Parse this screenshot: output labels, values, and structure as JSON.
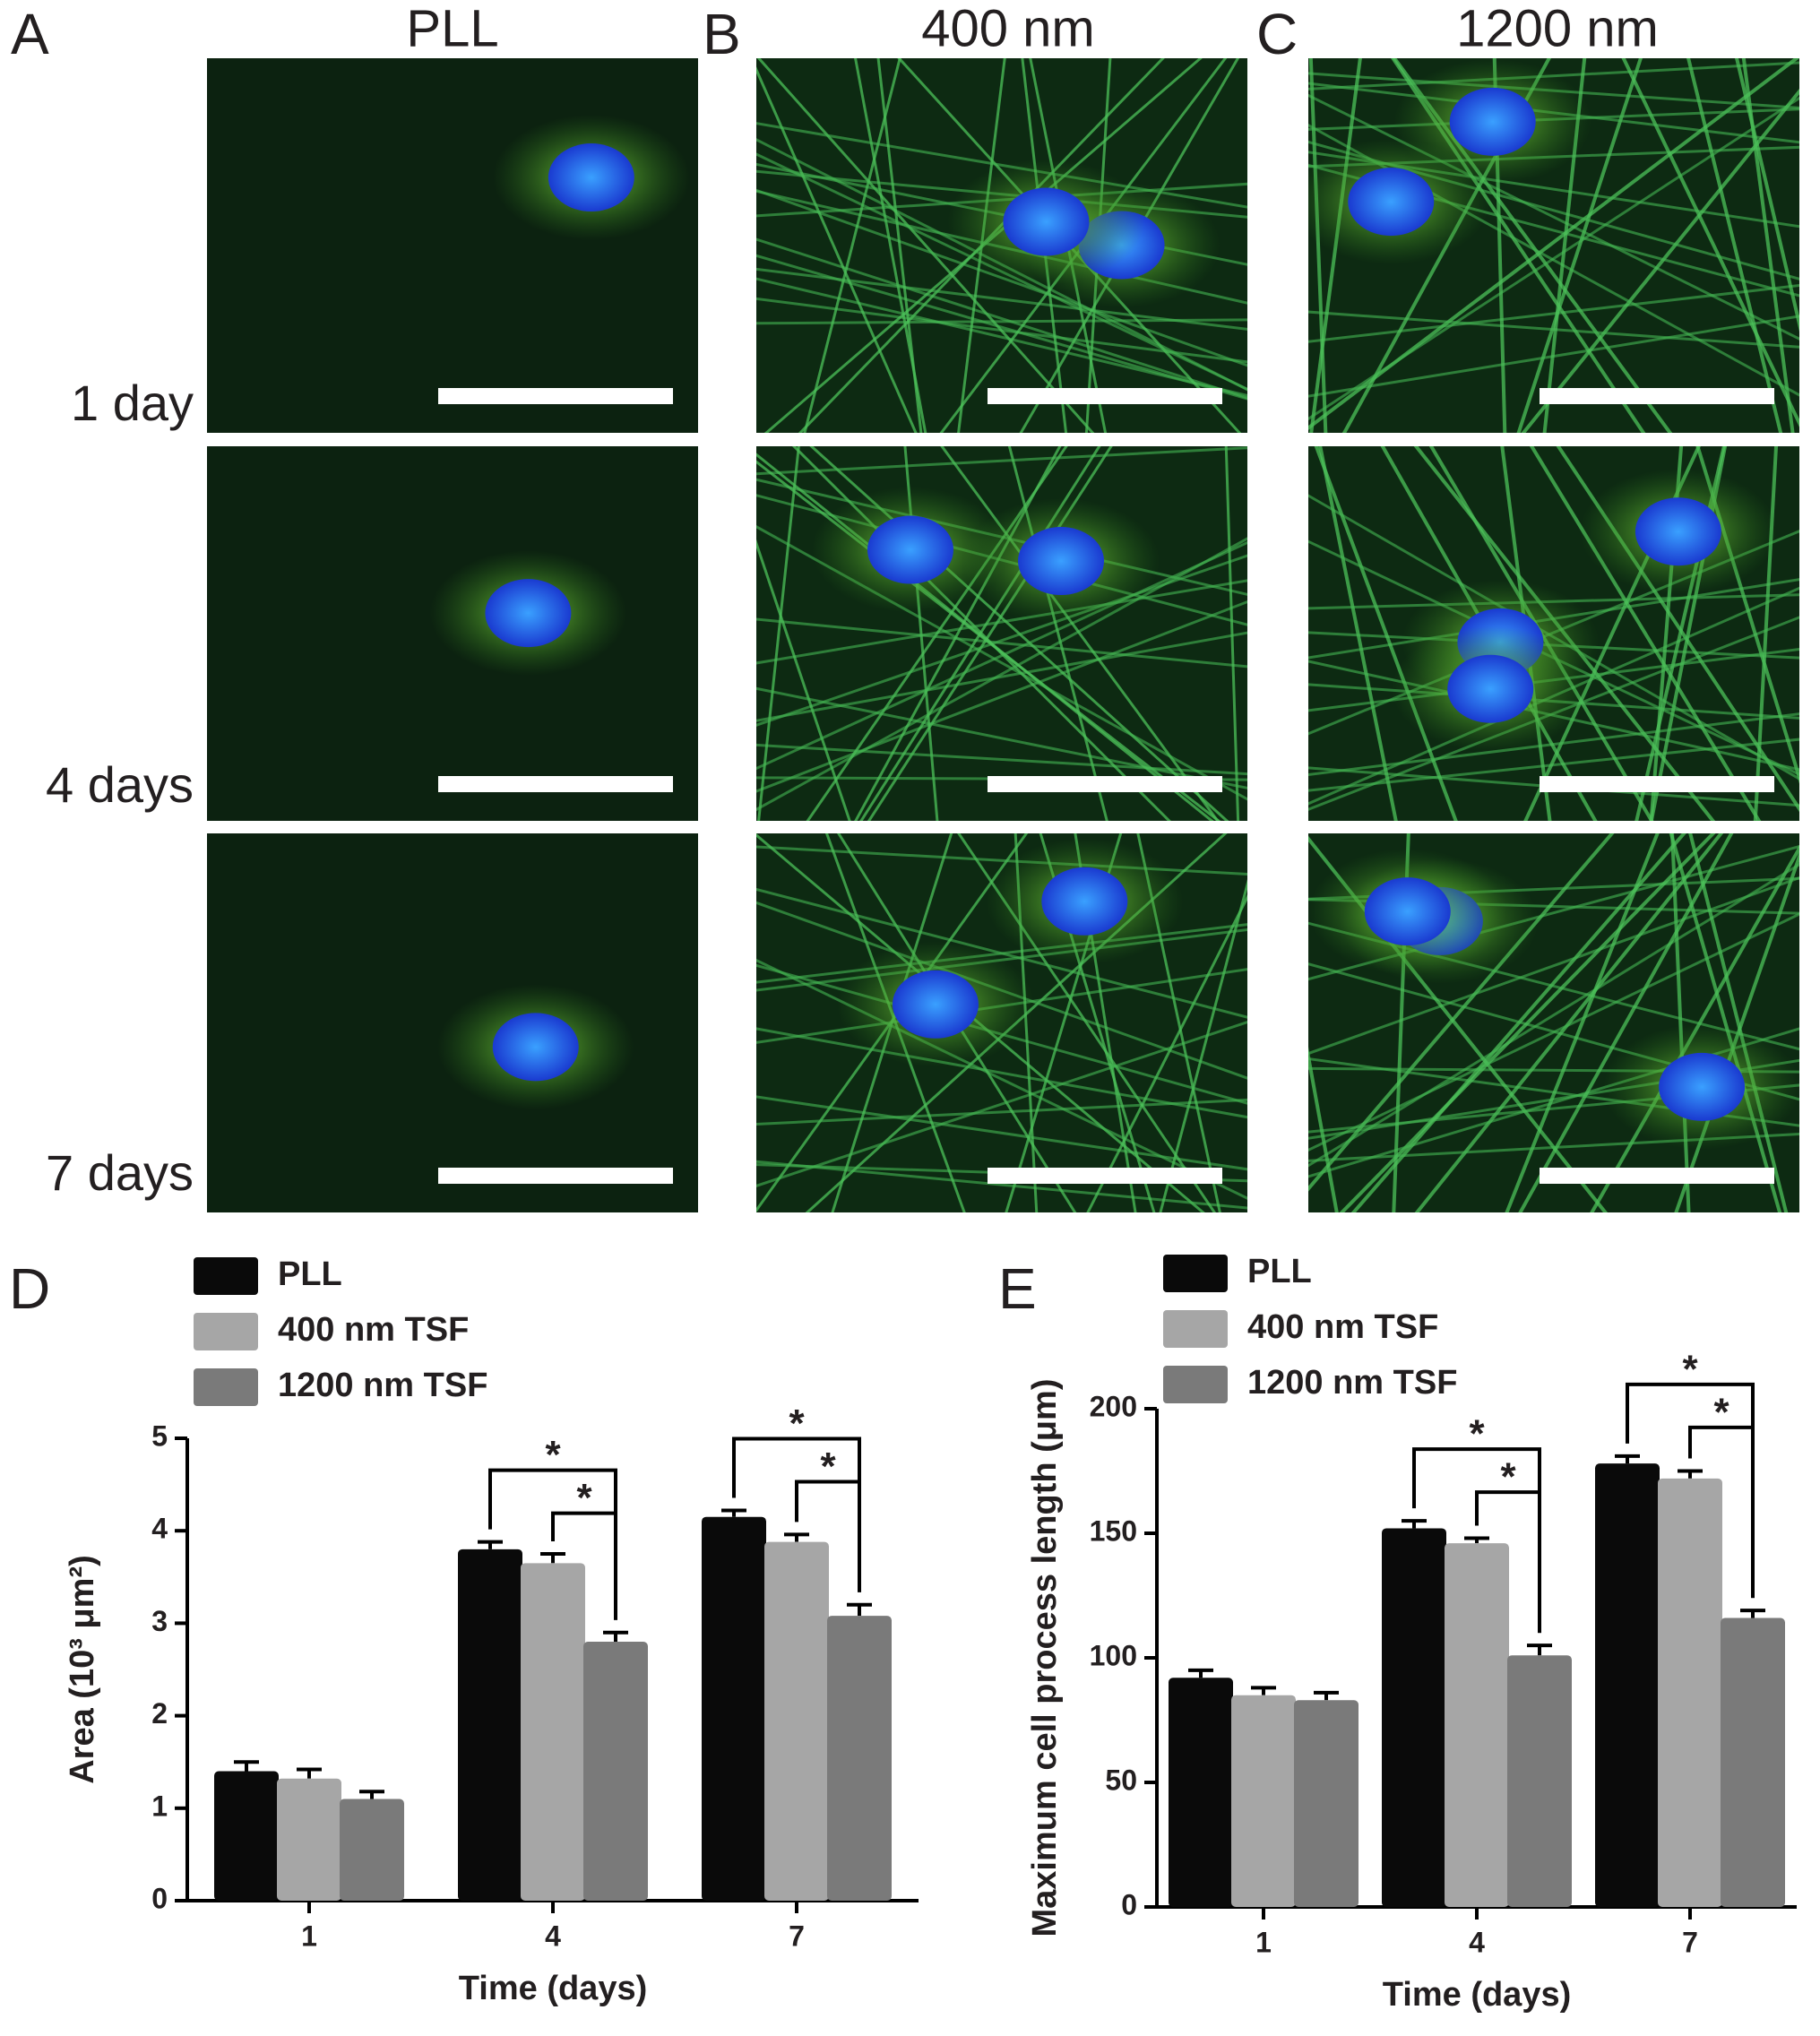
{
  "figure": {
    "panels": [
      "A",
      "B",
      "C",
      "D",
      "E"
    ],
    "columns": [
      "PLL",
      "400 nm",
      "1200 nm"
    ],
    "rows": [
      "1 day",
      "4 days",
      "7 days"
    ]
  },
  "chart_data": [
    {
      "type": "bar",
      "ylabel": "Area (10³ μm²)",
      "xlabel": "Time (days)",
      "categories": [
        "1",
        "4",
        "7"
      ],
      "series": [
        {
          "name": "PLL",
          "color": "#0a0a0a",
          "values": [
            1.4,
            3.8,
            4.15
          ],
          "errors": [
            0.1,
            0.08,
            0.07
          ]
        },
        {
          "name": "400 nm TSF",
          "color": "#a6a6a6",
          "values": [
            1.32,
            3.65,
            3.88
          ],
          "errors": [
            0.1,
            0.1,
            0.08
          ]
        },
        {
          "name": "1200 nm TSF",
          "color": "#7a7a7a",
          "values": [
            1.1,
            2.8,
            3.08
          ],
          "errors": [
            0.08,
            0.1,
            0.12
          ]
        }
      ],
      "ylim": [
        0,
        5
      ],
      "yticks": [
        0,
        1,
        2,
        3,
        4,
        5
      ],
      "annotations": [
        "*",
        "*",
        "*",
        "*"
      ]
    },
    {
      "type": "bar",
      "ylabel": "Maximum cell process length (μm)",
      "xlabel": "Time (days)",
      "categories": [
        "1",
        "4",
        "7"
      ],
      "series": [
        {
          "name": "PLL",
          "color": "#0a0a0a",
          "values": [
            92,
            152,
            178
          ],
          "errors": [
            3,
            3,
            3
          ]
        },
        {
          "name": "400 nm TSF",
          "color": "#a6a6a6",
          "values": [
            85,
            146,
            172
          ],
          "errors": [
            3,
            2,
            3
          ]
        },
        {
          "name": "1200 nm TSF",
          "color": "#7a7a7a",
          "values": [
            83,
            101,
            116
          ],
          "errors": [
            3,
            4,
            3
          ]
        }
      ],
      "ylim": [
        0,
        200
      ],
      "yticks": [
        0,
        50,
        100,
        150,
        200
      ],
      "annotations": [
        "*",
        "*",
        "*",
        "*"
      ]
    }
  ]
}
